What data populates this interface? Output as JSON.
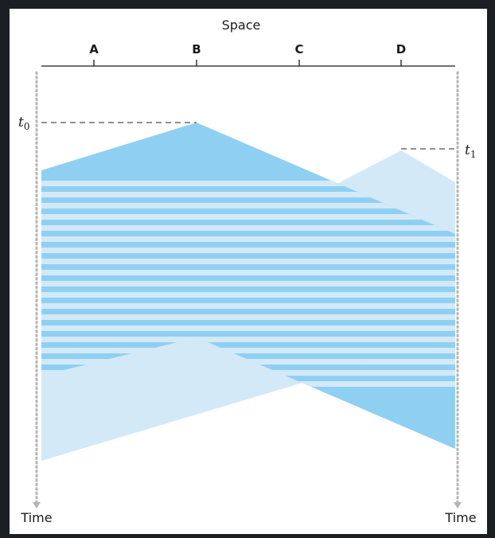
{
  "diagram": {
    "space_label": "Space",
    "time_label_left": "Time",
    "time_label_right": "Time",
    "nodes": [
      "A",
      "B",
      "C",
      "D"
    ],
    "t0_label": "t",
    "t0_sub": "0",
    "t1_label": "t",
    "t1_sub": "1"
  },
  "colors": {
    "frame_bg": "#1b1e22",
    "canvas_bg": "#ffffff",
    "signal_b": "#8fd0f2",
    "signal_d": "#d3e9f8",
    "axis": "#1a1a1a",
    "time_axis": "#b5b5b5",
    "dashed": "#6d6d6d"
  }
}
